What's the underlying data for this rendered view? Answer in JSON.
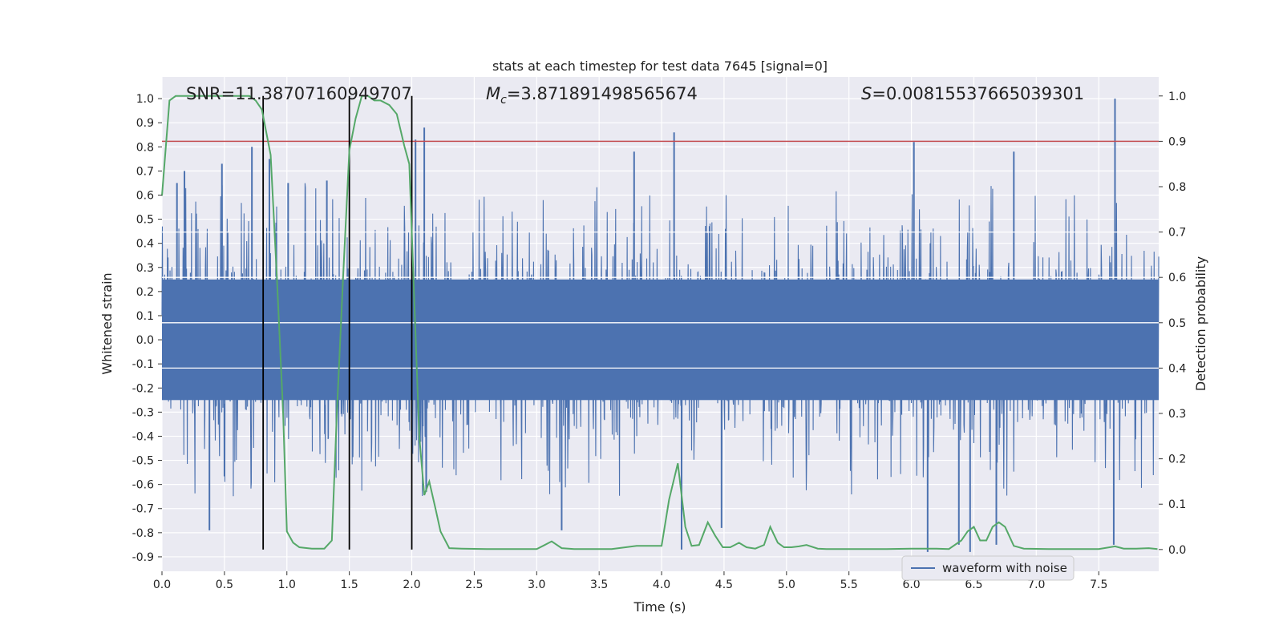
{
  "chart_data": {
    "type": "line",
    "title": "stats at each timestep for test data 7645 [signal=0]",
    "xlabel": "Time (s)",
    "ylabel_left": "Whitened strain",
    "ylabel_right": "Detection probability",
    "annotations": {
      "snr": "SNR=11.38707160949707",
      "mc_symbol": "M",
      "mc_sub": "c",
      "mc_value": "=3.871891498565674",
      "s_symbol": "S",
      "s_value": "=0.00815537665039301"
    },
    "xlim": [
      0.0,
      7.98
    ],
    "ylim_left": [
      -0.96,
      1.09
    ],
    "ylim_right": [
      -0.048,
      1.042
    ],
    "x_ticks": [
      "0.0",
      "0.5",
      "1.0",
      "1.5",
      "2.0",
      "2.5",
      "3.0",
      "3.5",
      "4.0",
      "4.5",
      "5.0",
      "5.5",
      "6.0",
      "6.5",
      "7.0",
      "7.5"
    ],
    "y_left_ticks": [
      "1.0",
      "0.9",
      "0.8",
      "0.7",
      "0.6",
      "0.5",
      "0.4",
      "0.3",
      "0.2",
      "0.1",
      "0.0",
      "-0.1",
      "-0.2",
      "-0.3",
      "-0.4",
      "-0.5",
      "-0.6",
      "-0.7",
      "-0.8",
      "-0.9"
    ],
    "y_right_ticks": [
      "1.0",
      "0.9",
      "0.8",
      "0.7",
      "0.6",
      "0.5",
      "0.4",
      "0.3",
      "0.2",
      "0.1",
      "0.0"
    ],
    "grid": true,
    "legend": {
      "placement": "lower-right",
      "entries": [
        "waveform with noise"
      ]
    },
    "series": [
      {
        "name": "waveform with noise",
        "axis": "left",
        "color": "#4c72b0",
        "description": "dense noisy strain signal, mostly within about ±0.45, spikes to about ±0.9",
        "typical_envelope": [
          -0.45,
          0.45
        ],
        "spikes": [
          {
            "x": 0.12,
            "y": 0.65
          },
          {
            "x": 0.18,
            "y": 0.7
          },
          {
            "x": 0.38,
            "y": -0.79
          },
          {
            "x": 0.48,
            "y": 0.73
          },
          {
            "x": 0.72,
            "y": 0.8
          },
          {
            "x": 0.86,
            "y": 0.75
          },
          {
            "x": 1.01,
            "y": 0.65
          },
          {
            "x": 1.32,
            "y": 0.66
          },
          {
            "x": 2.03,
            "y": 0.83
          },
          {
            "x": 2.1,
            "y": 0.88
          },
          {
            "x": 3.2,
            "y": -0.79
          },
          {
            "x": 3.78,
            "y": 0.78
          },
          {
            "x": 4.1,
            "y": 0.86
          },
          {
            "x": 4.16,
            "y": -0.87
          },
          {
            "x": 4.48,
            "y": -0.78
          },
          {
            "x": 6.02,
            "y": 0.82
          },
          {
            "x": 6.13,
            "y": -0.88
          },
          {
            "x": 6.38,
            "y": -0.85
          },
          {
            "x": 6.47,
            "y": -0.88
          },
          {
            "x": 6.68,
            "y": -0.85
          },
          {
            "x": 6.82,
            "y": 0.78
          },
          {
            "x": 7.63,
            "y": 1.0
          },
          {
            "x": 7.62,
            "y": -0.85
          }
        ]
      },
      {
        "name": "",
        "axis": "right",
        "color": "#55a868",
        "x": [
          0.0,
          0.06,
          0.11,
          0.2,
          0.3,
          0.5,
          0.7,
          0.75,
          0.8,
          0.87,
          0.92,
          0.97,
          1.0,
          1.05,
          1.1,
          1.2,
          1.3,
          1.36,
          1.4,
          1.45,
          1.5,
          1.55,
          1.6,
          1.65,
          1.7,
          1.75,
          1.82,
          1.88,
          1.94,
          1.98,
          2.02,
          2.06,
          2.1,
          2.14,
          2.19,
          2.23,
          2.3,
          2.4,
          2.6,
          2.8,
          3.0,
          3.05,
          3.12,
          3.2,
          3.3,
          3.6,
          3.8,
          4.0,
          4.06,
          4.13,
          4.19,
          4.24,
          4.3,
          4.37,
          4.43,
          4.49,
          4.55,
          4.62,
          4.68,
          4.75,
          4.82,
          4.87,
          4.93,
          4.98,
          5.04,
          5.1,
          5.16,
          5.25,
          5.32,
          5.4,
          5.6,
          5.8,
          6.0,
          6.2,
          6.3,
          6.4,
          6.45,
          6.5,
          6.55,
          6.6,
          6.65,
          6.7,
          6.75,
          6.82,
          6.9,
          7.1,
          7.3,
          7.5,
          7.63,
          7.7,
          7.8,
          7.9,
          7.97
        ],
        "values": [
          0.78,
          0.99,
          1.0,
          1.0,
          1.0,
          1.0,
          1.0,
          0.99,
          0.97,
          0.87,
          0.6,
          0.3,
          0.04,
          0.015,
          0.005,
          0.002,
          0.002,
          0.02,
          0.3,
          0.6,
          0.88,
          0.95,
          1.0,
          1.0,
          0.99,
          0.99,
          0.98,
          0.96,
          0.89,
          0.85,
          0.55,
          0.25,
          0.12,
          0.15,
          0.09,
          0.04,
          0.003,
          0.002,
          0.001,
          0.001,
          0.001,
          0.008,
          0.018,
          0.003,
          0.001,
          0.001,
          0.008,
          0.008,
          0.11,
          0.19,
          0.05,
          0.008,
          0.01,
          0.06,
          0.03,
          0.005,
          0.005,
          0.015,
          0.005,
          0.002,
          0.01,
          0.05,
          0.015,
          0.005,
          0.005,
          0.007,
          0.01,
          0.002,
          0.001,
          0.001,
          0.001,
          0.001,
          0.002,
          0.002,
          0.001,
          0.02,
          0.04,
          0.05,
          0.02,
          0.02,
          0.05,
          0.06,
          0.05,
          0.008,
          0.002,
          0.001,
          0.001,
          0.001,
          0.007,
          0.002,
          0.002,
          0.003,
          0.001
        ]
      }
    ],
    "threshold_line": {
      "axis": "right",
      "value": 0.9,
      "color": "#c44e52"
    },
    "vertical_markers": {
      "color": "#000000",
      "x": [
        0.81,
        1.5,
        2.0
      ],
      "y_right_range": [
        0.0,
        1.0
      ]
    }
  }
}
